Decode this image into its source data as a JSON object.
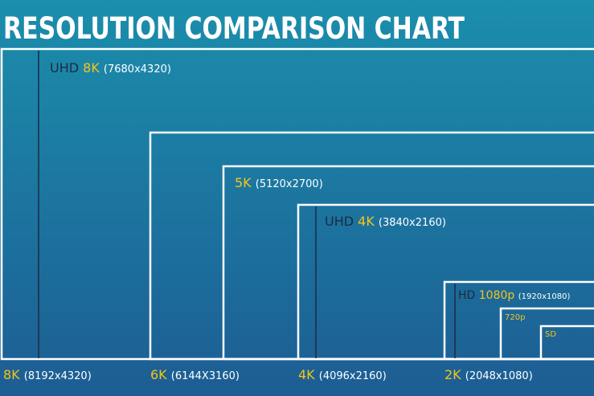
{
  "title": "RESOLUTION COMPARISON CHART",
  "inner_labels": [
    {
      "prefix": "UHD",
      "name": "8K",
      "resolution": "(7680x4320)"
    },
    {
      "name": "5K",
      "resolution": "(5120x2700)"
    },
    {
      "prefix": "UHD",
      "name": "4K",
      "resolution": "(3840x2160)"
    },
    {
      "prefix": "HD",
      "name": "1080p",
      "resolution": "(1920x1080)"
    },
    {
      "name": "720p"
    },
    {
      "name": "SD"
    }
  ],
  "bottom_labels": [
    {
      "name": "8K",
      "resolution": "(8192x4320)"
    },
    {
      "name": "6K",
      "resolution": "(6144X3160)"
    },
    {
      "name": "4K",
      "resolution": "(4096x2160)"
    },
    {
      "name": "2K",
      "resolution": "(2048x1080)"
    }
  ]
}
